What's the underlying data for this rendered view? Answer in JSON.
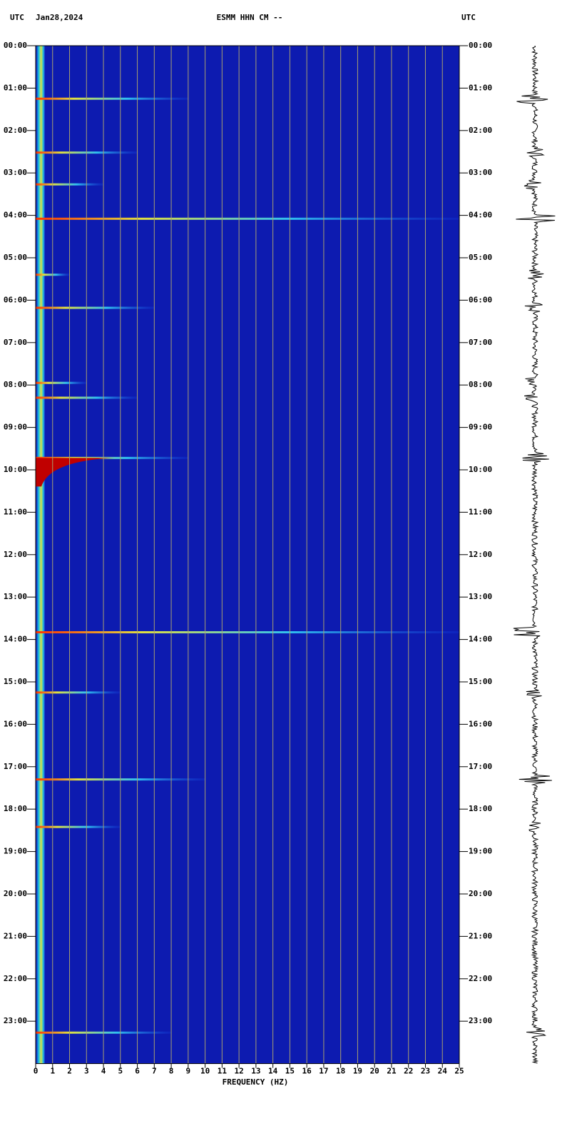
{
  "chart_data": {
    "type": "spectrogram",
    "title": "ESMM HHN CM --",
    "date": "Jan28,2024",
    "left_label": "UTC",
    "right_label": "UTC",
    "xlabel": "FREQUENCY (HZ)",
    "xlim": [
      0,
      25
    ],
    "xticks": [
      0,
      1,
      2,
      3,
      4,
      5,
      6,
      7,
      8,
      9,
      10,
      11,
      12,
      13,
      14,
      15,
      16,
      17,
      18,
      19,
      20,
      21,
      22,
      23,
      24,
      25
    ],
    "ylim": [
      0,
      24
    ],
    "yticks": [
      {
        "value": 0,
        "label": "00:00"
      },
      {
        "value": 1,
        "label": "01:00"
      },
      {
        "value": 2,
        "label": "02:00"
      },
      {
        "value": 3,
        "label": "03:00"
      },
      {
        "value": 4,
        "label": "04:00"
      },
      {
        "value": 5,
        "label": "05:00"
      },
      {
        "value": 6,
        "label": "06:00"
      },
      {
        "value": 7,
        "label": "07:00"
      },
      {
        "value": 8,
        "label": "08:00"
      },
      {
        "value": 9,
        "label": "09:00"
      },
      {
        "value": 10,
        "label": "10:00"
      },
      {
        "value": 11,
        "label": "11:00"
      },
      {
        "value": 12,
        "label": "12:00"
      },
      {
        "value": 13,
        "label": "13:00"
      },
      {
        "value": 14,
        "label": "14:00"
      },
      {
        "value": 15,
        "label": "15:00"
      },
      {
        "value": 16,
        "label": "16:00"
      },
      {
        "value": 17,
        "label": "17:00"
      },
      {
        "value": 18,
        "label": "18:00"
      },
      {
        "value": 19,
        "label": "19:00"
      },
      {
        "value": 20,
        "label": "20:00"
      },
      {
        "value": 21,
        "label": "21:00"
      },
      {
        "value": 22,
        "label": "22:00"
      },
      {
        "value": 23,
        "label": "23:00"
      }
    ],
    "grid": true,
    "background_color": "#0d1bb0",
    "grid_color": "#a8a070",
    "events": [
      {
        "time": 1.25,
        "fmax": 9
      },
      {
        "time": 2.52,
        "fmax": 6
      },
      {
        "time": 3.27,
        "fmax": 4
      },
      {
        "time": 4.08,
        "fmax": 25
      },
      {
        "time": 5.4,
        "fmax": 2
      },
      {
        "time": 6.18,
        "fmax": 7
      },
      {
        "time": 7.95,
        "fmax": 3
      },
      {
        "time": 8.3,
        "fmax": 6
      },
      {
        "time": 9.72,
        "fmax": 9
      },
      {
        "time": 13.83,
        "fmax": 25
      },
      {
        "time": 15.25,
        "fmax": 5
      },
      {
        "time": 17.3,
        "fmax": 10
      },
      {
        "time": 18.42,
        "fmax": 5
      },
      {
        "time": 23.27,
        "fmax": 8
      }
    ]
  }
}
